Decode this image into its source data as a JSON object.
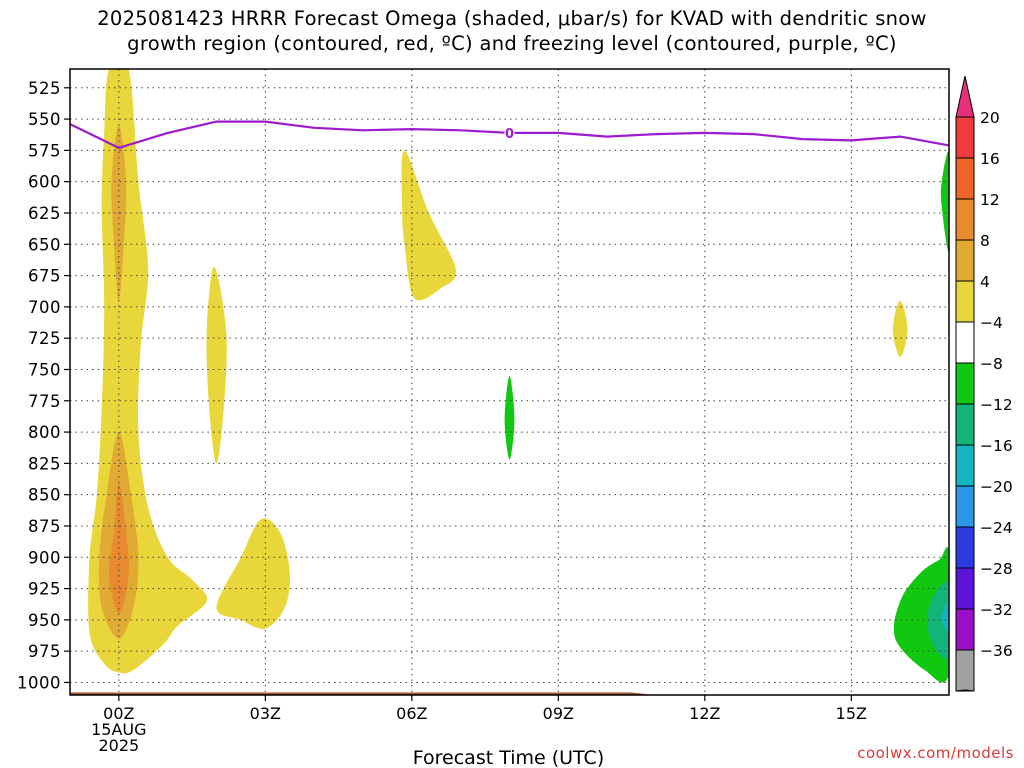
{
  "title": {
    "line1": "2025081423 HRRR Forecast Omega (shaded, μbar/s) for KVAD with dendritic snow",
    "line2": "growth region (contoured, red, ºC) and freezing level (contoured, purple, ºC)"
  },
  "credit": "coolwx.com/models",
  "chart_data": {
    "type": "heatmap",
    "title": "2025081423 HRRR Forecast Omega (shaded, μbar/s) for KVAD with dendritic snow growth region (contoured, red, ºC) and freezing level (contoured, purple, ºC)",
    "xlabel": "Forecast Time (UTC)",
    "ylabel": "",
    "x_unit": "hours from 00Z 15AUG2025",
    "xlim": [
      -1,
      17
    ],
    "ylim": [
      1010,
      510
    ],
    "x_ticks": [
      {
        "value": 0,
        "lines": [
          "00Z",
          "15AUG",
          "2025"
        ]
      },
      {
        "value": 3,
        "lines": [
          "03Z"
        ]
      },
      {
        "value": 6,
        "lines": [
          "06Z"
        ]
      },
      {
        "value": 9,
        "lines": [
          "09Z"
        ]
      },
      {
        "value": 12,
        "lines": [
          "12Z"
        ]
      },
      {
        "value": 15,
        "lines": [
          "15Z"
        ]
      }
    ],
    "y_ticks": [
      525,
      550,
      575,
      600,
      625,
      650,
      675,
      700,
      725,
      750,
      775,
      800,
      825,
      850,
      875,
      900,
      925,
      950,
      975,
      1000
    ],
    "grid": true,
    "colorbar": {
      "labels": [
        "20",
        "16",
        "12",
        "8",
        "4",
        "−4",
        "−8",
        "−12",
        "−16",
        "−20",
        "−24",
        "−28",
        "−32",
        "−36"
      ],
      "colors": [
        "#e8307a",
        "#f03c3c",
        "#f0642a",
        "#ea8a2e",
        "#e0aa33",
        "#e8d63a",
        "#ffffff",
        "#0fc80f",
        "#12b47a",
        "#13b6c0",
        "#2a96ea",
        "#2c3ce0",
        "#5c14d8",
        "#9810c8",
        "#a0a0a0",
        "#000000"
      ]
    },
    "freezing_level": {
      "color": "#9e1ad0",
      "label": "0",
      "label_x": 8.0,
      "points": [
        [
          -1,
          554
        ],
        [
          0,
          573
        ],
        [
          1,
          561
        ],
        [
          2,
          552
        ],
        [
          3,
          552
        ],
        [
          4,
          557
        ],
        [
          5,
          559
        ],
        [
          6,
          558
        ],
        [
          7,
          559
        ],
        [
          8,
          561
        ],
        [
          9,
          561
        ],
        [
          10,
          564
        ],
        [
          11,
          562
        ],
        [
          12,
          561
        ],
        [
          13,
          562
        ],
        [
          14,
          566
        ],
        [
          15,
          567
        ],
        [
          16,
          564
        ],
        [
          17,
          571
        ]
      ]
    },
    "ground": {
      "color": "#a0522d",
      "points": [
        [
          -1,
          1008
        ],
        [
          10.5,
          1008
        ],
        [
          11,
          1010
        ],
        [
          17,
          1010
        ]
      ]
    },
    "regions": [
      {
        "name": "omega 4-8",
        "color": "#e8d63a",
        "points": [
          [
            -0.2,
            510
          ],
          [
            0.2,
            510
          ],
          [
            0.4,
            600
          ],
          [
            0.6,
            670
          ],
          [
            0.45,
            730
          ],
          [
            0.4,
            800
          ],
          [
            0.6,
            860
          ],
          [
            1.0,
            900
          ],
          [
            1.5,
            918
          ],
          [
            1.8,
            935
          ],
          [
            1.2,
            955
          ],
          [
            0.9,
            970
          ],
          [
            0.3,
            990
          ],
          [
            0.0,
            992
          ],
          [
            -0.3,
            985
          ],
          [
            -0.6,
            960
          ],
          [
            -0.6,
            900
          ],
          [
            -0.45,
            850
          ],
          [
            -0.35,
            780
          ],
          [
            -0.3,
            700
          ],
          [
            -0.35,
            620
          ],
          [
            -0.3,
            560
          ]
        ]
      },
      {
        "name": "omega 8-12",
        "color": "#e0aa33",
        "points": [
          [
            0.0,
            555
          ],
          [
            0.15,
            600
          ],
          [
            0.1,
            650
          ],
          [
            0.0,
            695
          ],
          [
            -0.1,
            650
          ],
          [
            -0.15,
            600
          ]
        ]
      },
      {
        "name": "omega 8-12",
        "color": "#e0aa33",
        "points": [
          [
            0.0,
            800
          ],
          [
            0.25,
            850
          ],
          [
            0.4,
            900
          ],
          [
            0.3,
            940
          ],
          [
            0.0,
            965
          ],
          [
            -0.35,
            940
          ],
          [
            -0.4,
            900
          ],
          [
            -0.25,
            850
          ]
        ]
      },
      {
        "name": "omega 12-16",
        "color": "#ea8a2e",
        "points": [
          [
            0.0,
            840
          ],
          [
            0.15,
            880
          ],
          [
            0.2,
            915
          ],
          [
            0.0,
            945
          ],
          [
            -0.2,
            915
          ],
          [
            -0.1,
            880
          ]
        ]
      },
      {
        "name": "omega 4-8",
        "color": "#e8d63a",
        "points": [
          [
            1.95,
            668
          ],
          [
            2.2,
            720
          ],
          [
            2.15,
            780
          ],
          [
            2.0,
            825
          ],
          [
            1.85,
            780
          ],
          [
            1.8,
            720
          ]
        ]
      },
      {
        "name": "omega 4-8",
        "color": "#e8d63a",
        "points": [
          [
            2.0,
            940
          ],
          [
            2.5,
            900
          ],
          [
            2.9,
            870
          ],
          [
            3.3,
            880
          ],
          [
            3.5,
            912
          ],
          [
            3.4,
            940
          ],
          [
            3.0,
            957
          ],
          [
            2.5,
            950
          ]
        ]
      },
      {
        "name": "omega 4-8",
        "color": "#e8d63a",
        "points": [
          [
            5.85,
            575
          ],
          [
            6.35,
            625
          ],
          [
            6.9,
            670
          ],
          [
            6.6,
            685
          ],
          [
            6.05,
            693
          ],
          [
            5.85,
            650
          ],
          [
            5.8,
            620
          ]
        ]
      },
      {
        "name": "omega -4 to -8",
        "color": "#0fc80f",
        "points": [
          [
            8.0,
            755
          ],
          [
            8.1,
            790
          ],
          [
            8.0,
            822
          ],
          [
            7.9,
            790
          ]
        ]
      },
      {
        "name": "omega 4-8",
        "color": "#e8d63a",
        "points": [
          [
            16.0,
            695
          ],
          [
            16.15,
            718
          ],
          [
            16.0,
            740
          ],
          [
            15.85,
            718
          ]
        ]
      },
      {
        "name": "omega -4 to -8",
        "color": "#0fc80f",
        "points": [
          [
            17.0,
            578
          ],
          [
            17.0,
            655
          ],
          [
            16.85,
            620
          ],
          [
            16.85,
            600
          ]
        ]
      },
      {
        "name": "omega -4 to -8",
        "color": "#0fc80f",
        "points": [
          [
            17.0,
            898
          ],
          [
            17.0,
            993
          ],
          [
            16.5,
            990
          ],
          [
            15.9,
            965
          ],
          [
            16.0,
            935
          ],
          [
            16.4,
            913
          ],
          [
            16.8,
            902
          ]
        ]
      },
      {
        "name": "omega -8 to -12",
        "color": "#12b47a",
        "points": [
          [
            17.0,
            922
          ],
          [
            17.0,
            978
          ],
          [
            16.7,
            972
          ],
          [
            16.55,
            950
          ],
          [
            16.7,
            930
          ]
        ]
      },
      {
        "name": "omega -12 to -16",
        "color": "#13b6c0",
        "points": [
          [
            17.0,
            935
          ],
          [
            17.0,
            960
          ],
          [
            16.85,
            948
          ]
        ]
      }
    ]
  }
}
